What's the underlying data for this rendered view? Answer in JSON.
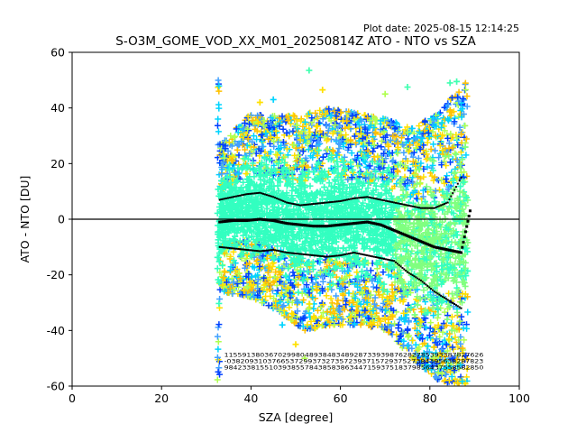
{
  "plot_date": "Plot date: 2025-08-15 12:14:25",
  "chart_data": {
    "type": "scatter",
    "title": "S-O3M_GOME_VOD_XX_M01_20250814Z ATO - NTO vs SZA",
    "xlabel": "SZA [degree]",
    "ylabel": "ATO - NTO [DU]",
    "xlim": [
      0,
      100
    ],
    "ylim": [
      -60,
      60
    ],
    "xticks": [
      0,
      20,
      40,
      60,
      80,
      100
    ],
    "yticks": [
      -60,
      -40,
      -20,
      0,
      20,
      40,
      60
    ],
    "grid": false,
    "marker": "+",
    "colormap": "jet",
    "zero_line": 0,
    "point_cloud": {
      "sza_range": [
        32.5,
        88.5
      ],
      "bulk_color": "#33ffc0",
      "high_sza_color": "#80ff80",
      "edge_colors": [
        "#00d4ff",
        "#ffe000",
        "#b0ff50",
        "#ffc000",
        "#0040ff",
        "#40a0ff"
      ],
      "envelope": [
        {
          "sza": 33,
          "lower": -26,
          "upper": 27
        },
        {
          "sza": 40,
          "lower": -28,
          "upper": 38
        },
        {
          "sza": 46,
          "lower": -33,
          "upper": 37
        },
        {
          "sza": 52,
          "lower": -40,
          "upper": 38
        },
        {
          "sza": 58,
          "lower": -38,
          "upper": 40
        },
        {
          "sza": 64,
          "lower": -38,
          "upper": 38
        },
        {
          "sza": 70,
          "lower": -40,
          "upper": 36
        },
        {
          "sza": 76,
          "lower": -50,
          "upper": 33
        },
        {
          "sza": 82,
          "lower": -58,
          "upper": 38
        },
        {
          "sza": 88,
          "lower": -60,
          "upper": 50
        }
      ]
    },
    "outliers": [
      {
        "x": 53,
        "y": 53.5,
        "color": "#40ffb0"
      },
      {
        "x": 56,
        "y": 46.5,
        "color": "#ffe000"
      },
      {
        "x": 75,
        "y": 47.5,
        "color": "#40ffb0"
      },
      {
        "x": 84.5,
        "y": 49,
        "color": "#40ffb0"
      },
      {
        "x": 86,
        "y": 49.5,
        "color": "#40ffb0"
      },
      {
        "x": 42,
        "y": 42,
        "color": "#ffe000"
      },
      {
        "x": 45,
        "y": 43,
        "color": "#00d4ff"
      },
      {
        "x": 70,
        "y": 45,
        "color": "#b0ff50"
      },
      {
        "x": 48,
        "y": 31,
        "color": "#0040ff"
      },
      {
        "x": 65,
        "y": 29,
        "color": "#0040ff"
      },
      {
        "x": 66,
        "y": 31,
        "color": "#0040ff"
      },
      {
        "x": 73,
        "y": -38,
        "color": "#0040ff"
      },
      {
        "x": 73.5,
        "y": -42,
        "color": "#0040ff"
      },
      {
        "x": 75,
        "y": -40,
        "color": "#0040ff"
      },
      {
        "x": 47,
        "y": -38,
        "color": "#00d4ff"
      },
      {
        "x": 50,
        "y": -45,
        "color": "#ffe000"
      },
      {
        "x": 52,
        "y": -50,
        "color": "#b0ff50"
      },
      {
        "x": 60,
        "y": -38,
        "color": "#ffe000"
      },
      {
        "x": 62,
        "y": -30,
        "color": "#ffc000"
      },
      {
        "x": 85,
        "y": -50,
        "color": "#0040ff"
      }
    ],
    "series": [
      {
        "style": "black squares",
        "x": [
          33,
          36,
          39,
          42,
          45,
          48,
          51,
          54,
          57,
          60,
          63,
          66,
          69,
          72,
          75,
          78,
          81,
          84,
          87,
          89
        ],
        "y": [
          -1,
          -0.5,
          -0.5,
          0,
          -0.5,
          -1.5,
          -2,
          -2.5,
          -2.5,
          -2,
          -1.5,
          -1,
          -2,
          -4,
          -6,
          -8,
          -10,
          -11,
          -12,
          3
        ]
      },
      {
        "style": "black dots",
        "x": [
          33,
          36,
          39,
          42,
          45,
          48,
          51,
          54,
          57,
          60,
          63,
          66,
          69,
          72,
          75,
          78,
          81,
          84,
          87
        ],
        "y": [
          7,
          8,
          9,
          9.5,
          8,
          6,
          5,
          5.5,
          6,
          6.5,
          7.5,
          8,
          7,
          6,
          5,
          4,
          4,
          6,
          15
        ]
      },
      {
        "style": "black dots",
        "x": [
          33,
          36,
          39,
          42,
          45,
          48,
          51,
          54,
          57,
          60,
          63,
          66,
          69,
          72,
          75,
          78,
          81,
          84,
          87
        ],
        "y": [
          -10,
          -10.5,
          -11,
          -11.5,
          -11,
          -12,
          -12.5,
          -13,
          -13.5,
          -13,
          -12,
          -13,
          -14,
          -15,
          -19,
          -22,
          -26,
          -29,
          -32
        ]
      }
    ],
    "count_labels": [
      "1155913803670299804893848348928733939876282785393387827626",
      "-038209310376653729937327357239371572937527384395638287823",
      "9842338155103938557843858386344715937518379856437558582850"
    ]
  }
}
